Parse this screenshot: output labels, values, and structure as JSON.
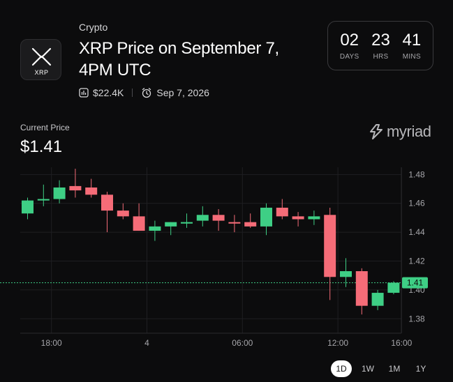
{
  "header": {
    "category": "Crypto",
    "title": "XRP Price on September 7, 4PM UTC",
    "logo_text": "XRP",
    "volume": "$22.4K",
    "date": "Sep 7, 2026"
  },
  "countdown": [
    {
      "value": "02",
      "label": "DAYS"
    },
    {
      "value": "23",
      "label": "HRS"
    },
    {
      "value": "41",
      "label": "MINS"
    }
  ],
  "price": {
    "label": "Current Price",
    "value": "$1.41"
  },
  "brand": {
    "name": "myriad"
  },
  "timeframes": [
    {
      "label": "1D",
      "active": true
    },
    {
      "label": "1W",
      "active": false
    },
    {
      "label": "1M",
      "active": false
    },
    {
      "label": "1Y",
      "active": false
    }
  ],
  "colors": {
    "up": "#3ecf85",
    "down": "#f56c78",
    "current_line": "#3ecf85",
    "grid": "#1f1f22"
  },
  "chart_data": {
    "type": "candlestick",
    "current_price": 1.405,
    "current_price_label": "1.41",
    "ylim": [
      1.37,
      1.485
    ],
    "y_ticks": [
      1.38,
      1.4,
      1.42,
      1.44,
      1.46,
      1.48
    ],
    "y_tick_labels": [
      "1.38",
      "1.40",
      "1.42",
      "1.44",
      "1.46",
      "1.48"
    ],
    "x_tick_labels": [
      {
        "label": "18:00",
        "index": 1.5
      },
      {
        "label": "4",
        "index": 7.5
      },
      {
        "label": "06:00",
        "index": 13.5
      },
      {
        "label": "12:00",
        "index": 19.5
      },
      {
        "label": "16:00",
        "index": 23.5
      }
    ],
    "candles": [
      {
        "o": 1.453,
        "h": 1.464,
        "l": 1.449,
        "c": 1.462
      },
      {
        "o": 1.462,
        "h": 1.473,
        "l": 1.458,
        "c": 1.463
      },
      {
        "o": 1.463,
        "h": 1.476,
        "l": 1.46,
        "c": 1.471
      },
      {
        "o": 1.472,
        "h": 1.484,
        "l": 1.464,
        "c": 1.469
      },
      {
        "o": 1.471,
        "h": 1.477,
        "l": 1.464,
        "c": 1.466
      },
      {
        "o": 1.466,
        "h": 1.468,
        "l": 1.44,
        "c": 1.455
      },
      {
        "o": 1.455,
        "h": 1.46,
        "l": 1.449,
        "c": 1.451
      },
      {
        "o": 1.451,
        "h": 1.46,
        "l": 1.441,
        "c": 1.441
      },
      {
        "o": 1.441,
        "h": 1.448,
        "l": 1.434,
        "c": 1.444
      },
      {
        "o": 1.444,
        "h": 1.447,
        "l": 1.438,
        "c": 1.447
      },
      {
        "o": 1.446,
        "h": 1.453,
        "l": 1.443,
        "c": 1.447
      },
      {
        "o": 1.448,
        "h": 1.458,
        "l": 1.444,
        "c": 1.452
      },
      {
        "o": 1.452,
        "h": 1.456,
        "l": 1.441,
        "c": 1.448
      },
      {
        "o": 1.447,
        "h": 1.452,
        "l": 1.44,
        "c": 1.446
      },
      {
        "o": 1.447,
        "h": 1.453,
        "l": 1.443,
        "c": 1.444
      },
      {
        "o": 1.444,
        "h": 1.46,
        "l": 1.438,
        "c": 1.457
      },
      {
        "o": 1.457,
        "h": 1.463,
        "l": 1.449,
        "c": 1.451
      },
      {
        "o": 1.451,
        "h": 1.454,
        "l": 1.444,
        "c": 1.449
      },
      {
        "o": 1.449,
        "h": 1.455,
        "l": 1.445,
        "c": 1.451
      },
      {
        "o": 1.452,
        "h": 1.457,
        "l": 1.393,
        "c": 1.409
      },
      {
        "o": 1.409,
        "h": 1.422,
        "l": 1.402,
        "c": 1.413
      },
      {
        "o": 1.413,
        "h": 1.415,
        "l": 1.383,
        "c": 1.389
      },
      {
        "o": 1.389,
        "h": 1.4,
        "l": 1.386,
        "c": 1.398
      },
      {
        "o": 1.398,
        "h": 1.406,
        "l": 1.397,
        "c": 1.405
      }
    ]
  }
}
